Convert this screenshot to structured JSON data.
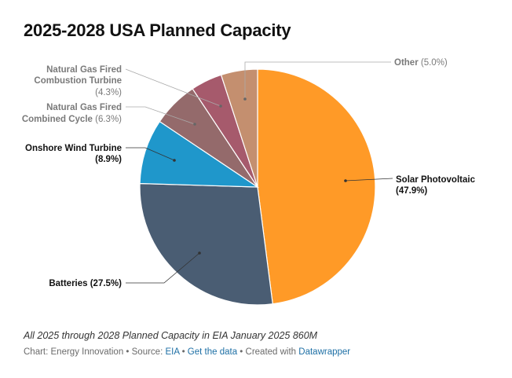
{
  "title": "2025-2028 USA Planned Capacity",
  "chart_data": {
    "type": "pie",
    "title": "2025-2028 USA Planned Capacity",
    "slices": [
      {
        "name": "Solar Photovoltaic",
        "value": 47.9,
        "label_value": "(47.9%)",
        "color": "#ff9a27",
        "label_side": "right",
        "emphasis": true
      },
      {
        "name": "Batteries",
        "value": 27.5,
        "label_value": "(27.5%)",
        "color": "#4a5d73",
        "label_side": "left",
        "emphasis": true
      },
      {
        "name": "Onshore Wind Turbine",
        "value": 8.9,
        "label_value": "(8.9%)",
        "color": "#1f97cb",
        "label_side": "left",
        "emphasis": true
      },
      {
        "name": "Natural Gas Fired Combined Cycle",
        "value": 6.3,
        "label_value": "(6.3%)",
        "color": "#946a6b",
        "label_side": "left",
        "emphasis": false
      },
      {
        "name": "Natural Gas Fired Combustion Turbine",
        "value": 4.3,
        "label_value": "(4.3%)",
        "color": "#a65a6c",
        "label_side": "left",
        "emphasis": false
      },
      {
        "name": "Other",
        "value": 5.0,
        "label_value": "(5.0%)",
        "color": "#c48f6f",
        "label_side": "right",
        "emphasis": false
      }
    ]
  },
  "labels": {
    "solar_l1": "Solar Photovoltaic",
    "solar_l2": "(47.9%)",
    "batteries": "Batteries (27.5%)",
    "wind_l1": "Onshore Wind Turbine",
    "wind_l2": "(8.9%)",
    "ngcc_l1": "Natural Gas Fired",
    "ngcc_l2a": "Combined Cycle",
    "ngcc_l2b": "(6.3%)",
    "ngct_l1": "Natural Gas Fired",
    "ngct_l2": "Combustion Turbine",
    "ngct_l3": "(4.3%)",
    "other_a": "Other",
    "other_b": "(5.0%)"
  },
  "note": "All 2025 through 2028 Planned Capacity in EIA January 2025 860M",
  "credits": {
    "chart_by": "Chart: Energy Innovation",
    "sep1": " • ",
    "source_label": "Source: ",
    "source_link": "EIA",
    "sep2": " • ",
    "get_data": "Get the data",
    "sep3": " • ",
    "created_with": "Created with ",
    "tool": "Datawrapper"
  }
}
